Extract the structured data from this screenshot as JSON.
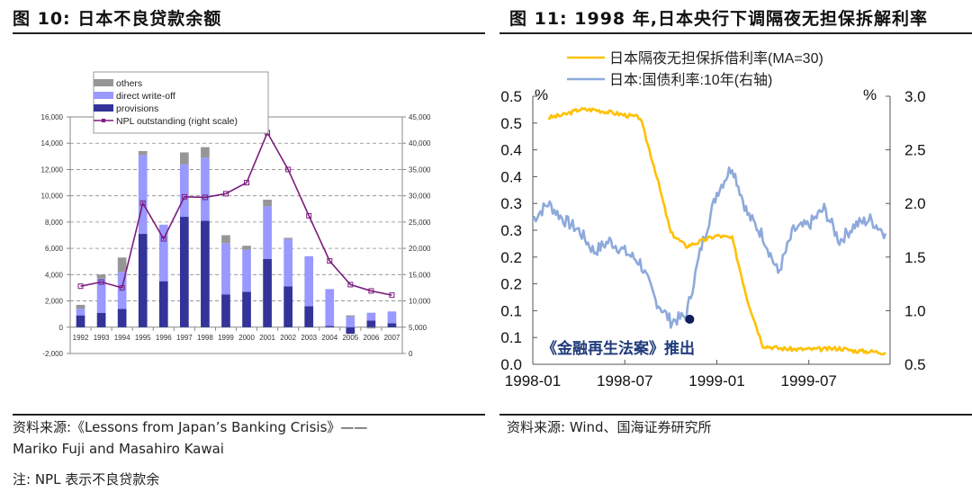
{
  "left": {
    "title": "图 10:  日本不良贷款余额",
    "source_line1": "资料来源:《Lessons  from  Japan’s  Banking  Crisis》——",
    "source_line2": "Mariko Fuji and Masahiro Kawai",
    "note": "注:  NPL 表示不良贷款余"
  },
  "right": {
    "title": "图 11:  1998 年,日本央行下调隔夜无担保拆解利率",
    "source": "资料来源:  Wind、国海证券研究所"
  },
  "chart_data": [
    {
      "type": "bar",
      "stacked": true,
      "title": "日本不良贷款余额",
      "categories": [
        "1992",
        "1993",
        "1994",
        "1995",
        "1996",
        "1997",
        "1998",
        "1999",
        "2000",
        "2001",
        "2002",
        "2003",
        "2004",
        "2005",
        "2006",
        "2007"
      ],
      "series": [
        {
          "name": "provisions",
          "color": "#333399",
          "values": [
            900,
            1100,
            1400,
            7100,
            3500,
            8400,
            8100,
            2500,
            2700,
            5200,
            3100,
            1600,
            100,
            -500,
            500,
            300
          ]
        },
        {
          "name": "direct write-off",
          "color": "#9999ff",
          "values": [
            500,
            2600,
            2800,
            6000,
            4300,
            4000,
            4800,
            3900,
            3200,
            4000,
            3600,
            3800,
            2800,
            800,
            600,
            900
          ]
        },
        {
          "name": "others",
          "color": "#969696",
          "values": [
            300,
            300,
            1100,
            300,
            0,
            900,
            800,
            600,
            300,
            500,
            100,
            0,
            0,
            100,
            -100,
            0
          ]
        }
      ],
      "line_series": {
        "name": "NPL outstanding (right scale)",
        "color": "#7b1c7e",
        "axis": "right",
        "values": [
          12800,
          13600,
          12500,
          28600,
          21800,
          29800,
          29700,
          30400,
          32500,
          42000,
          35000,
          26200,
          17600,
          13100,
          11900,
          11100
        ]
      },
      "legend": [
        "others",
        "direct write-off",
        "provisions",
        "NPL outstanding (right scale)"
      ],
      "legend_position": "top",
      "ylim": [
        -2000,
        16000
      ],
      "yticks": [
        "-2,000",
        "0",
        "2,000",
        "4,000",
        "6,000",
        "8,000",
        "10,000",
        "12,000",
        "14,000",
        "16,000"
      ],
      "y2lim": [
        0,
        45000
      ],
      "y2ticks": [
        "0",
        "5,000",
        "10,000",
        "15,000",
        "20,000",
        "25,000",
        "30,000",
        "35,000",
        "40,000",
        "45,000"
      ],
      "grid": "dashed horizontal"
    },
    {
      "type": "line",
      "title": "1998 年,日本央行下调隔夜无担保拆解利率",
      "series": [
        {
          "name": "日本隔夜无担保拆借利率(MA=30)",
          "color": "#ffc000",
          "axis": "left",
          "x": [
            "1998-02",
            "1998-03",
            "1998-04",
            "1998-05",
            "1998-06",
            "1998-07",
            "1998-08",
            "1998-09",
            "1998-10",
            "1998-11",
            "1998-12",
            "1999-01",
            "1999-02",
            "1999-03",
            "1999-04",
            "1999-05",
            "1999-06",
            "1999-07",
            "1999-08",
            "1999-09",
            "1999-10",
            "1999-11",
            "1999-12"
          ],
          "values": [
            0.46,
            0.465,
            0.475,
            0.475,
            0.47,
            0.465,
            0.46,
            0.36,
            0.245,
            0.22,
            0.23,
            0.24,
            0.235,
            0.12,
            0.035,
            0.03,
            0.028,
            0.028,
            0.028,
            0.03,
            0.025,
            0.024,
            0.022
          ]
        },
        {
          "name": "日本:国债利率:10年(右轴)",
          "color": "#8eaadb",
          "axis": "right",
          "x": [
            "1998-01",
            "1998-02",
            "1998-03",
            "1998-04",
            "1998-05",
            "1998-06",
            "1998-07",
            "1998-08",
            "1998-09",
            "1998-10",
            "1998-11",
            "1998-12",
            "1999-01",
            "1999-02",
            "1999-03",
            "1999-04",
            "1999-05",
            "1999-06",
            "1999-07",
            "1999-08",
            "1999-09",
            "1999-10",
            "1999-11",
            "1999-12"
          ],
          "values": [
            1.85,
            2.0,
            1.85,
            1.75,
            1.55,
            1.65,
            1.55,
            1.45,
            1.1,
            0.9,
            0.95,
            1.6,
            2.1,
            2.35,
            1.9,
            1.7,
            1.35,
            1.75,
            1.8,
            1.95,
            1.65,
            1.8,
            1.85,
            1.72
          ]
        }
      ],
      "annotation": {
        "text": "《金融再生法案》推出",
        "x": "1998-11",
        "y_right": 0.92
      },
      "xticks": [
        "1998-01",
        "1998-07",
        "1999-01",
        "1999-07"
      ],
      "ylim": [
        0.0,
        0.5
      ],
      "yticks": [
        "0.0",
        "0.1",
        "0.1",
        "0.2",
        "0.2",
        "0.3",
        "0.3",
        "0.4",
        "0.4",
        "0.5",
        "0.5"
      ],
      "ylabel": "%",
      "y2lim": [
        0.5,
        3.0
      ],
      "y2ticks": [
        "0.5",
        "1.0",
        "1.5",
        "2.0",
        "2.5",
        "3.0"
      ],
      "y2label": "%",
      "legend_position": "top"
    }
  ]
}
